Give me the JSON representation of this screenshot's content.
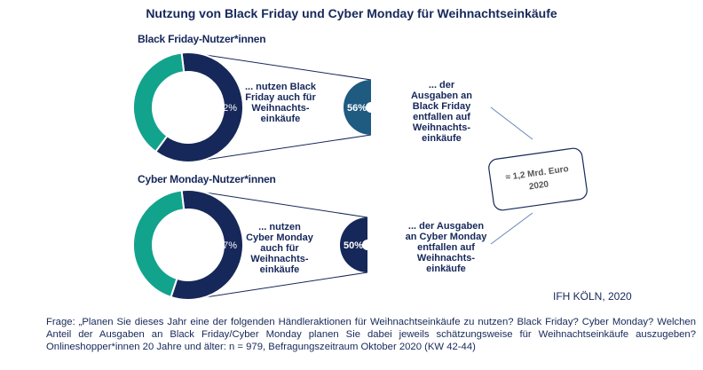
{
  "title": "Nutzung von Black Friday und Cyber Monday für Weihnachtseinkäufe",
  "source": "IFH KÖLN, 2020",
  "note": "Frage: „Planen Sie dieses Jahr eine der folgenden Händleraktionen für Weihnachtseinkäufe zu nutzen? Black Friday? Cyber Monday? Welchen Anteil der Ausgaben an Black Friday/Cyber Monday planen Sie dabei jeweils schätzungsweise für Weihnachtseinkäufe auszugeben? Onlineshopper*innen 20 Jahre und älter: n = 979, Befragungszeitraum Oktober 2020 (KW 42-44)",
  "colors": {
    "navy": "#16285a",
    "teal": "#12a38c",
    "petrol": "#1f5a80"
  },
  "total_box": {
    "line1": "≈ 1,2 Mrd. Euro",
    "line2": "2020"
  },
  "chart_data": [
    {
      "type": "pie",
      "title": "Black Friday-Nutzer*innen",
      "usage_percent": 62,
      "usage_label": "62%",
      "usage_text": "... nutzen Black Friday auch für Weihnachts-einkäufe",
      "spend_percent": 56,
      "spend_label": "56%",
      "spend_text": "... der Ausgaben an Black Friday entfallen auf Weihnachts-einkäufe"
    },
    {
      "type": "pie",
      "title": "Cyber Monday-Nutzer*innen",
      "usage_percent": 57,
      "usage_label": "57%",
      "usage_text": "... nutzen Cyber Monday auch für Weihnachts-einkäufe",
      "spend_percent": 50,
      "spend_label": "50%",
      "spend_text": "... der Ausgaben an Cyber Monday entfallen auf Weihnachts-einkäufe"
    }
  ]
}
